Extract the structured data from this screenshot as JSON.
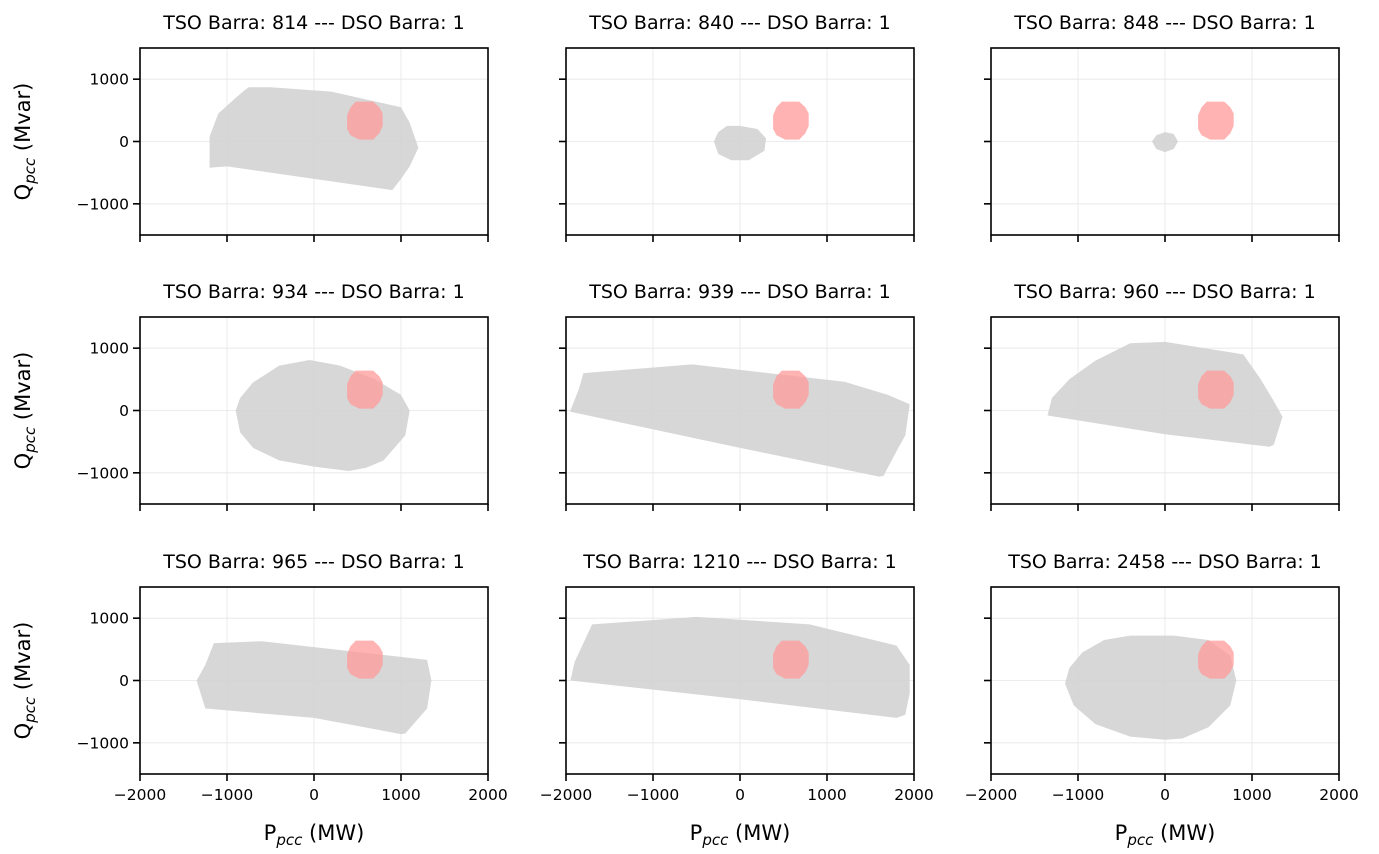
{
  "figure": {
    "xlabel": {
      "main": "P",
      "sub": "pcc",
      "unit": " (MW)"
    },
    "ylabel": {
      "main": "Q",
      "sub": "pcc",
      "unit": " (Mvar)"
    },
    "colors": {
      "tso_region": "#d3d3d3",
      "dso_region": "#ff9999",
      "axes": "#000000",
      "grid": "#e6e6e6"
    }
  },
  "chart_data": [
    {
      "type": "area",
      "title": "TSO Barra: 814 --- DSO Barra: 1",
      "xlim": [
        -2000,
        2000
      ],
      "ylim": [
        -1500,
        1500
      ],
      "xticks": [
        -2000,
        -1000,
        0,
        1000,
        2000
      ],
      "yticks": [
        -1000,
        0,
        1000
      ],
      "grid": true,
      "series": [
        {
          "values": [
            [
              -1200,
              -420
            ],
            [
              -1200,
              80
            ],
            [
              -1100,
              450
            ],
            [
              -900,
              700
            ],
            [
              -800,
              820
            ],
            [
              -750,
              870
            ],
            [
              -500,
              870
            ],
            [
              200,
              800
            ],
            [
              1000,
              550
            ],
            [
              1100,
              300
            ],
            [
              1200,
              -100
            ],
            [
              1100,
              -400
            ],
            [
              1000,
              -600
            ],
            [
              900,
              -780
            ],
            [
              0,
              -600
            ],
            [
              -1000,
              -400
            ]
          ]
        },
        {
          "values": [
            [
              420,
              100
            ],
            [
              380,
              200
            ],
            [
              380,
              420
            ],
            [
              420,
              550
            ],
            [
              480,
              640
            ],
            [
              680,
              640
            ],
            [
              750,
              550
            ],
            [
              790,
              450
            ],
            [
              790,
              250
            ],
            [
              750,
              130
            ],
            [
              680,
              30
            ],
            [
              520,
              30
            ]
          ]
        }
      ]
    },
    {
      "type": "area",
      "title": "TSO Barra: 840 --- DSO Barra: 1",
      "xlim": [
        -2000,
        2000
      ],
      "ylim": [
        -1500,
        1500
      ],
      "xticks": [
        -2000,
        -1000,
        0,
        1000,
        2000
      ],
      "yticks": [
        -1000,
        0,
        1000
      ],
      "grid": true,
      "series": [
        {
          "values": [
            [
              -300,
              0
            ],
            [
              -250,
              150
            ],
            [
              -150,
              250
            ],
            [
              0,
              250
            ],
            [
              200,
              200
            ],
            [
              300,
              50
            ],
            [
              280,
              -150
            ],
            [
              100,
              -300
            ],
            [
              -100,
              -300
            ],
            [
              -250,
              -200
            ]
          ]
        },
        {
          "values": [
            [
              420,
              100
            ],
            [
              380,
              200
            ],
            [
              380,
              420
            ],
            [
              420,
              550
            ],
            [
              480,
              640
            ],
            [
              680,
              640
            ],
            [
              750,
              550
            ],
            [
              790,
              450
            ],
            [
              790,
              250
            ],
            [
              750,
              130
            ],
            [
              680,
              30
            ],
            [
              520,
              30
            ]
          ]
        }
      ]
    },
    {
      "type": "area",
      "title": "TSO Barra: 848 --- DSO Barra: 1",
      "xlim": [
        -2000,
        2000
      ],
      "ylim": [
        -1500,
        1500
      ],
      "xticks": [
        -2000,
        -1000,
        0,
        1000,
        2000
      ],
      "yticks": [
        -1000,
        0,
        1000
      ],
      "grid": true,
      "series": [
        {
          "values": [
            [
              -150,
              0
            ],
            [
              -100,
              100
            ],
            [
              0,
              150
            ],
            [
              100,
              120
            ],
            [
              150,
              0
            ],
            [
              100,
              -120
            ],
            [
              0,
              -170
            ],
            [
              -100,
              -120
            ]
          ]
        },
        {
          "values": [
            [
              420,
              100
            ],
            [
              380,
              200
            ],
            [
              380,
              420
            ],
            [
              420,
              550
            ],
            [
              480,
              640
            ],
            [
              680,
              640
            ],
            [
              750,
              550
            ],
            [
              790,
              450
            ],
            [
              790,
              250
            ],
            [
              750,
              130
            ],
            [
              680,
              30
            ],
            [
              520,
              30
            ]
          ]
        }
      ]
    },
    {
      "type": "area",
      "title": "TSO Barra: 934 --- DSO Barra: 1",
      "xlim": [
        -2000,
        2000
      ],
      "ylim": [
        -1500,
        1500
      ],
      "xticks": [
        -2000,
        -1000,
        0,
        1000,
        2000
      ],
      "yticks": [
        -1000,
        0,
        1000
      ],
      "grid": true,
      "series": [
        {
          "values": [
            [
              -900,
              0
            ],
            [
              -850,
              200
            ],
            [
              -700,
              450
            ],
            [
              -400,
              720
            ],
            [
              -50,
              810
            ],
            [
              300,
              720
            ],
            [
              700,
              500
            ],
            [
              1000,
              250
            ],
            [
              1100,
              0
            ],
            [
              1050,
              -400
            ],
            [
              800,
              -800
            ],
            [
              600,
              -920
            ],
            [
              400,
              -970
            ],
            [
              0,
              -900
            ],
            [
              -400,
              -800
            ],
            [
              -700,
              -600
            ],
            [
              -850,
              -350
            ]
          ]
        },
        {
          "values": [
            [
              420,
              100
            ],
            [
              380,
              200
            ],
            [
              380,
              420
            ],
            [
              420,
              550
            ],
            [
              480,
              640
            ],
            [
              680,
              640
            ],
            [
              750,
              550
            ],
            [
              790,
              450
            ],
            [
              790,
              250
            ],
            [
              750,
              130
            ],
            [
              680,
              30
            ],
            [
              520,
              30
            ]
          ]
        }
      ]
    },
    {
      "type": "area",
      "title": "TSO Barra: 939 --- DSO Barra: 1",
      "xlim": [
        -2000,
        2000
      ],
      "ylim": [
        -1500,
        1500
      ],
      "xticks": [
        -2000,
        -1000,
        0,
        1000,
        2000
      ],
      "yticks": [
        -1000,
        0,
        1000
      ],
      "grid": true,
      "series": [
        {
          "values": [
            [
              -1950,
              0
            ],
            [
              -1850,
              350
            ],
            [
              -1800,
              600
            ],
            [
              -550,
              740
            ],
            [
              1200,
              460
            ],
            [
              1700,
              250
            ],
            [
              1950,
              100
            ],
            [
              1900,
              -400
            ],
            [
              1800,
              -650
            ],
            [
              1650,
              -1050
            ],
            [
              1600,
              -1060
            ],
            [
              0,
              -600
            ],
            [
              -1950,
              -20
            ]
          ]
        },
        {
          "values": [
            [
              420,
              100
            ],
            [
              380,
              200
            ],
            [
              380,
              420
            ],
            [
              420,
              550
            ],
            [
              480,
              640
            ],
            [
              680,
              640
            ],
            [
              750,
              550
            ],
            [
              790,
              450
            ],
            [
              790,
              250
            ],
            [
              750,
              130
            ],
            [
              680,
              30
            ],
            [
              520,
              30
            ]
          ]
        }
      ]
    },
    {
      "type": "area",
      "title": "TSO Barra: 960 --- DSO Barra: 1",
      "xlim": [
        -2000,
        2000
      ],
      "ylim": [
        -1500,
        1500
      ],
      "xticks": [
        -2000,
        -1000,
        0,
        1000,
        2000
      ],
      "yticks": [
        -1000,
        0,
        1000
      ],
      "grid": true,
      "series": [
        {
          "values": [
            [
              -1350,
              -80
            ],
            [
              -1300,
              200
            ],
            [
              -1100,
              500
            ],
            [
              -800,
              800
            ],
            [
              -400,
              1080
            ],
            [
              0,
              1100
            ],
            [
              900,
              900
            ],
            [
              1100,
              500
            ],
            [
              1250,
              150
            ],
            [
              1350,
              -100
            ],
            [
              1250,
              -550
            ],
            [
              1200,
              -580
            ],
            [
              0,
              -380
            ],
            [
              -1350,
              -80
            ]
          ]
        },
        {
          "values": [
            [
              420,
              100
            ],
            [
              380,
              200
            ],
            [
              380,
              420
            ],
            [
              420,
              550
            ],
            [
              480,
              640
            ],
            [
              680,
              640
            ],
            [
              750,
              550
            ],
            [
              790,
              450
            ],
            [
              790,
              250
            ],
            [
              750,
              130
            ],
            [
              680,
              30
            ],
            [
              520,
              30
            ]
          ]
        }
      ]
    },
    {
      "type": "area",
      "title": "TSO Barra: 965 --- DSO Barra: 1",
      "xlim": [
        -2000,
        2000
      ],
      "ylim": [
        -1500,
        1500
      ],
      "xticks": [
        -2000,
        -1000,
        0,
        1000,
        2000
      ],
      "yticks": [
        -1000,
        0,
        1000
      ],
      "grid": true,
      "series": [
        {
          "values": [
            [
              -1350,
              0
            ],
            [
              -1250,
              250
            ],
            [
              -1150,
              600
            ],
            [
              -600,
              630
            ],
            [
              1300,
              330
            ],
            [
              1350,
              0
            ],
            [
              1300,
              -450
            ],
            [
              1050,
              -850
            ],
            [
              1000,
              -860
            ],
            [
              0,
              -600
            ],
            [
              -1250,
              -450
            ],
            [
              -1350,
              0
            ]
          ]
        },
        {
          "values": [
            [
              420,
              100
            ],
            [
              380,
              200
            ],
            [
              380,
              420
            ],
            [
              420,
              550
            ],
            [
              480,
              640
            ],
            [
              680,
              640
            ],
            [
              750,
              550
            ],
            [
              790,
              450
            ],
            [
              790,
              250
            ],
            [
              750,
              130
            ],
            [
              680,
              30
            ],
            [
              520,
              30
            ]
          ]
        }
      ]
    },
    {
      "type": "area",
      "title": "TSO Barra: 1210 --- DSO Barra: 1",
      "xlim": [
        -2000,
        2000
      ],
      "ylim": [
        -1500,
        1500
      ],
      "xticks": [
        -2000,
        -1000,
        0,
        1000,
        2000
      ],
      "yticks": [
        -1000,
        0,
        1000
      ],
      "grid": true,
      "series": [
        {
          "values": [
            [
              -1950,
              0
            ],
            [
              -1900,
              300
            ],
            [
              -1700,
              900
            ],
            [
              -500,
              1020
            ],
            [
              800,
              900
            ],
            [
              1800,
              560
            ],
            [
              1950,
              250
            ],
            [
              1950,
              -200
            ],
            [
              1900,
              -550
            ],
            [
              1800,
              -600
            ],
            [
              0,
              -300
            ],
            [
              -1950,
              0
            ]
          ]
        },
        {
          "values": [
            [
              420,
              100
            ],
            [
              380,
              200
            ],
            [
              380,
              420
            ],
            [
              420,
              550
            ],
            [
              480,
              640
            ],
            [
              680,
              640
            ],
            [
              750,
              550
            ],
            [
              790,
              450
            ],
            [
              790,
              250
            ],
            [
              750,
              130
            ],
            [
              680,
              30
            ],
            [
              520,
              30
            ]
          ]
        }
      ]
    },
    {
      "type": "area",
      "title": "TSO Barra: 2458 --- DSO Barra: 1",
      "xlim": [
        -2000,
        2000
      ],
      "ylim": [
        -1500,
        1500
      ],
      "xticks": [
        -2000,
        -1000,
        0,
        1000,
        2000
      ],
      "yticks": [
        -1000,
        0,
        1000
      ],
      "grid": true,
      "series": [
        {
          "values": [
            [
              -1150,
              -50
            ],
            [
              -1100,
              200
            ],
            [
              -950,
              450
            ],
            [
              -700,
              650
            ],
            [
              -400,
              720
            ],
            [
              100,
              720
            ],
            [
              500,
              650
            ],
            [
              750,
              400
            ],
            [
              820,
              0
            ],
            [
              750,
              -400
            ],
            [
              500,
              -750
            ],
            [
              200,
              -930
            ],
            [
              0,
              -950
            ],
            [
              -400,
              -900
            ],
            [
              -800,
              -700
            ],
            [
              -1050,
              -400
            ]
          ]
        },
        {
          "values": [
            [
              420,
              100
            ],
            [
              380,
              200
            ],
            [
              380,
              420
            ],
            [
              420,
              550
            ],
            [
              480,
              640
            ],
            [
              680,
              640
            ],
            [
              750,
              550
            ],
            [
              790,
              450
            ],
            [
              790,
              250
            ],
            [
              750,
              130
            ],
            [
              680,
              30
            ],
            [
              520,
              30
            ]
          ]
        }
      ]
    }
  ]
}
